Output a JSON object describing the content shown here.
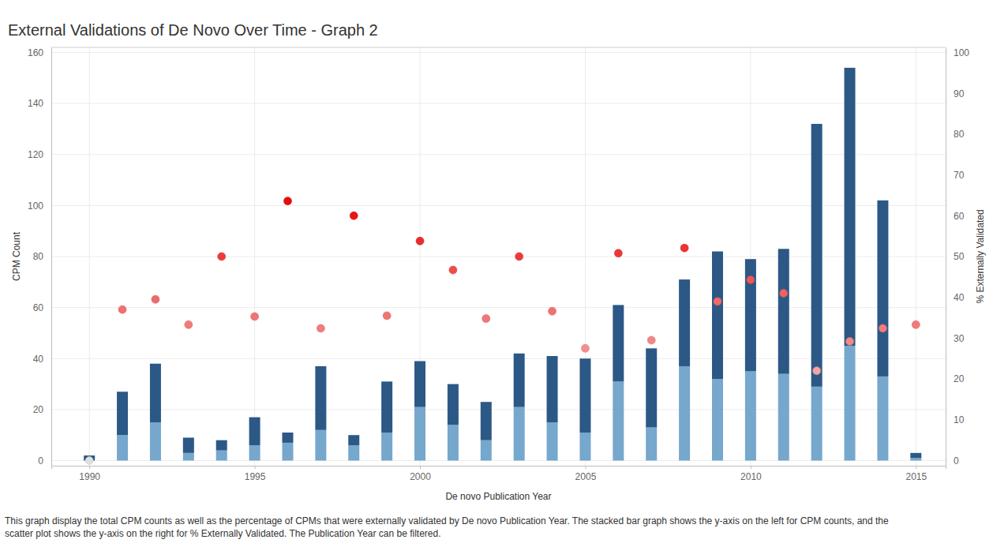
{
  "chart_data": {
    "type": "bar",
    "title": "External Validations of De Novo Over Time - Graph 2",
    "x_label": "De novo Publication Year",
    "y_label": "CPM Count",
    "y2_label": "% Externally Validated",
    "caption": [
      "This graph display the total CPM counts as well as the percentage of CPMs that were externally validated by De novo Publication Year. The stacked bar graph shows the y-axis on the left for CPM counts, and the",
      "scatter plot shows the y-axis on the right for % Externally Validated. The Publication Year can be filtered."
    ],
    "x": [
      1990,
      1991,
      1992,
      1993,
      1994,
      1995,
      1996,
      1997,
      1998,
      1999,
      2000,
      2001,
      2002,
      2003,
      2004,
      2005,
      2006,
      2007,
      2008,
      2009,
      2010,
      2011,
      2012,
      2013,
      2014,
      2015
    ],
    "xlim": [
      1988.85,
      2015.9
    ],
    "xticks": [
      1990,
      1995,
      2000,
      2005,
      2010,
      2015
    ],
    "ylim": [
      -2,
      162
    ],
    "yticks": [
      0,
      20,
      40,
      60,
      80,
      100,
      120,
      140,
      160
    ],
    "y2lim": [
      -1.25,
      101.25
    ],
    "y2ticks": [
      0,
      10,
      20,
      30,
      40,
      50,
      60,
      70,
      80,
      90,
      100
    ],
    "stacked": true,
    "grid": true,
    "series": [
      {
        "type": "bar",
        "color": "#76a7cc",
        "values": [
          0,
          10,
          15,
          3,
          4,
          6,
          7,
          12,
          6,
          11,
          21,
          14,
          8,
          21,
          15,
          11,
          31,
          13,
          37,
          32,
          35,
          34,
          29,
          45,
          33,
          1
        ]
      },
      {
        "type": "bar",
        "color": "#2c5886",
        "values": [
          2,
          17,
          23,
          6,
          4,
          11,
          4,
          25,
          4,
          20,
          18,
          16,
          15,
          21,
          26,
          29,
          30,
          31,
          34,
          50,
          44,
          49,
          103,
          109,
          69,
          2
        ]
      },
      {
        "type": "scatter",
        "axis": "y2",
        "marker": "circle",
        "values": [
          0,
          37.0,
          39.5,
          33.3,
          50.0,
          35.3,
          63.6,
          32.4,
          60.0,
          35.5,
          53.8,
          46.7,
          34.8,
          50.0,
          36.6,
          27.5,
          50.8,
          29.5,
          52.1,
          39.0,
          44.3,
          41.0,
          22.0,
          29.2,
          32.4,
          33.3
        ],
        "colors": [
          "#e0e0e0",
          "#f07070",
          "#f06868",
          "#f27a7a",
          "#ee3a3a",
          "#f17474",
          "#e80c0c",
          "#f27c7c",
          "#ea1616",
          "#f17373",
          "#ec2c2c",
          "#ef4c4c",
          "#f17676",
          "#ee3a3a",
          "#f07171",
          "#f48e8e",
          "#ed3737",
          "#f38686",
          "#ed3232",
          "#f06a6a",
          "#ef5656",
          "#f06262",
          "#f5a3a3",
          "#f38787",
          "#f27c7c",
          "#f27a7a"
        ]
      }
    ]
  }
}
